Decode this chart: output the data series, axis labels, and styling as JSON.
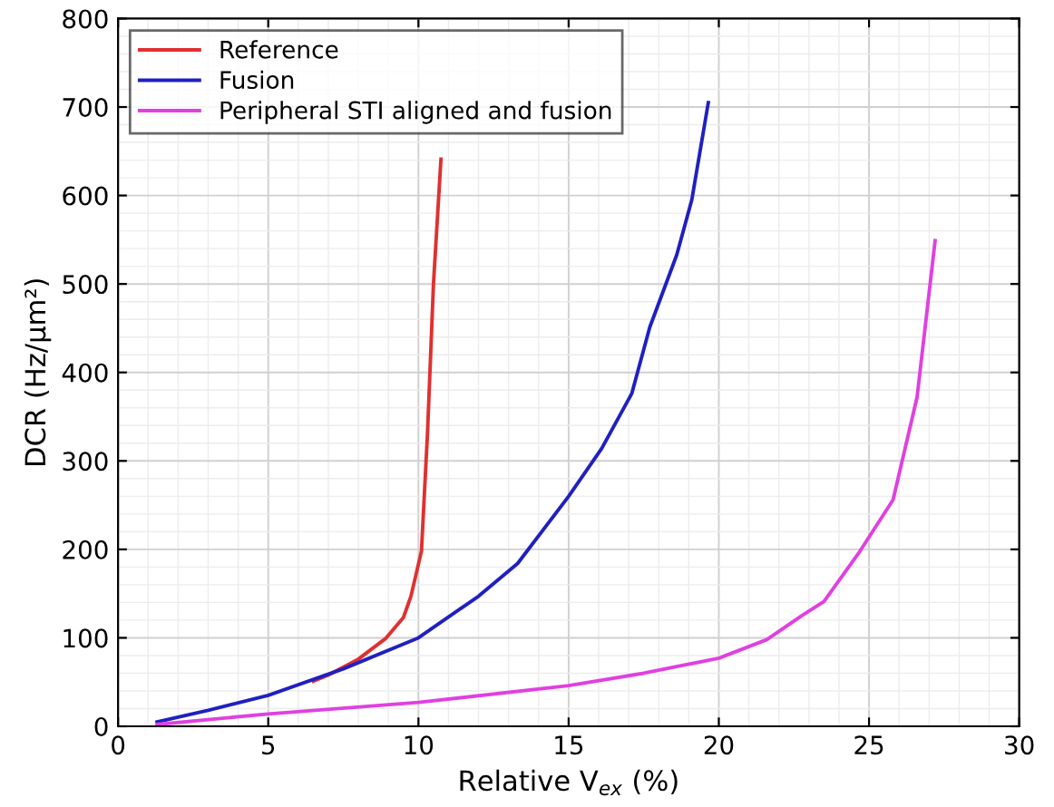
{
  "chart_data": {
    "type": "line",
    "xlabel": "Relative V$_{ex}$ (%)",
    "ylabel": "DCR (Hz/μm²)",
    "xlim": [
      0,
      30
    ],
    "ylim": [
      0,
      800
    ],
    "xticks": [
      0,
      5,
      10,
      15,
      20,
      25,
      30
    ],
    "yticks": [
      0,
      100,
      200,
      300,
      400,
      500,
      600,
      700,
      800
    ],
    "grid": true,
    "legend": "top left",
    "marker": "none",
    "line_style": "solid",
    "series": [
      {
        "name": "Reference",
        "color": "#e03030",
        "x": [
          6.5,
          7,
          8,
          8.9,
          9.5,
          9.75,
          10.1,
          10.3,
          10.5,
          10.75
        ],
        "values": [
          51,
          58,
          76,
          99,
          123,
          147,
          198,
          330,
          500,
          641
        ]
      },
      {
        "name": "Fusion",
        "color": "#2020c0",
        "x": [
          1.3,
          3,
          5,
          7.5,
          10,
          12,
          13.3,
          15,
          16.1,
          17.1,
          17.7,
          18.6,
          19.1,
          19.65
        ],
        "values": [
          5,
          18,
          35,
          65,
          100,
          147,
          184,
          260,
          314,
          376,
          451,
          533,
          595,
          705
        ]
      },
      {
        "name": "Peripheral STI aligned and fusion",
        "color": "#e040e0",
        "x": [
          1.3,
          5,
          10,
          15,
          17.5,
          20,
          21.6,
          22.8,
          23.5,
          24.7,
          25.8,
          26.6,
          27.2
        ],
        "values": [
          2,
          14,
          27,
          46,
          60,
          77,
          98,
          126,
          141,
          198,
          256,
          372,
          549
        ]
      }
    ]
  }
}
